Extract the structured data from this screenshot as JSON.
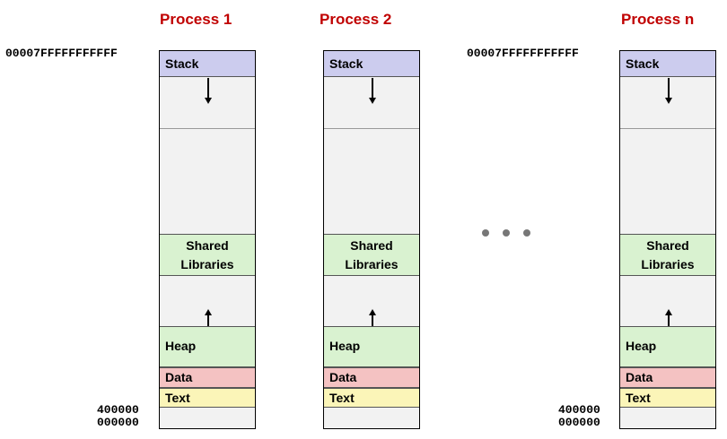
{
  "processes": [
    {
      "title": "Process 1",
      "top_address": "00007FFFFFFFFFFF",
      "addr_400000": "400000",
      "addr_zero": "000000"
    },
    {
      "title": "Process 2"
    },
    {
      "title": "Process n",
      "top_address": "00007FFFFFFFFFFF",
      "addr_400000": "400000",
      "addr_zero": "000000"
    }
  ],
  "segments": {
    "stack": "Stack",
    "shared_line1": "Shared",
    "shared_line2": "Libraries",
    "heap": "Heap",
    "data": "Data",
    "text": "Text"
  },
  "colors": {
    "title": "#c00000",
    "stack": "#ccccee",
    "shared": "#d9f2d0",
    "heap": "#d9f2d0",
    "data": "#f4c2c2",
    "text": "#fbf5b8",
    "free": "#f2f2f2"
  }
}
